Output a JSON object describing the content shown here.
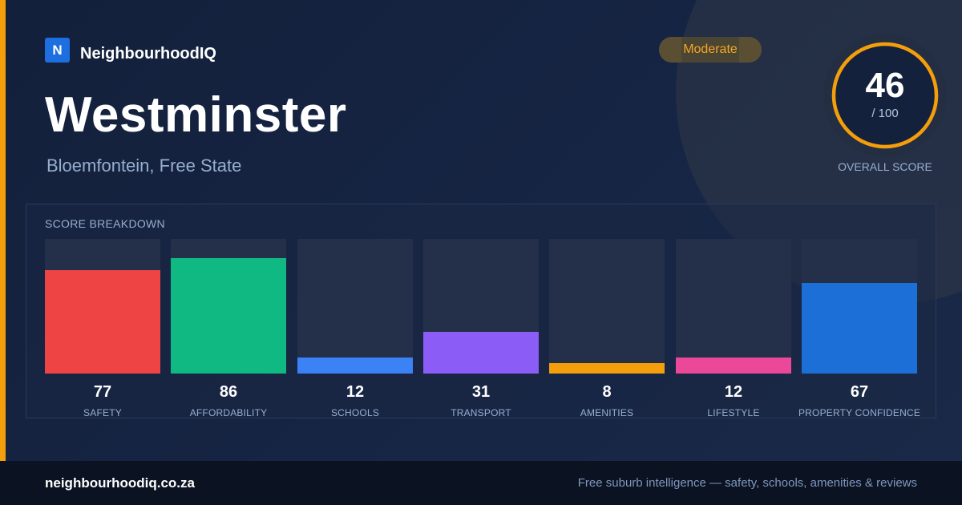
{
  "brand": {
    "logo_letter": "N",
    "name": "NeighbourhoodIQ"
  },
  "title": "Westminster",
  "subtitle": "Bloemfontein, Free State",
  "badge": {
    "label": "Moderate",
    "color": "#f5a524"
  },
  "overall": {
    "score": "46",
    "max": "/ 100",
    "label": "OVERALL SCORE",
    "ring_color": "#f59e0b"
  },
  "breakdown": {
    "title": "SCORE BREAKDOWN"
  },
  "chart_data": {
    "type": "bar",
    "title": "SCORE BREAKDOWN",
    "categories": [
      "SAFETY",
      "AFFORDABILITY",
      "SCHOOLS",
      "TRANSPORT",
      "AMENITIES",
      "LIFESTYLE",
      "PROPERTY CONFIDENCE"
    ],
    "values": [
      77,
      86,
      12,
      31,
      8,
      12,
      67
    ],
    "colors": [
      "#ef4444",
      "#10b981",
      "#3b82f6",
      "#8b5cf6",
      "#f59e0b",
      "#ec4899",
      "#1d6fd8"
    ],
    "ylim": [
      0,
      100
    ]
  },
  "footer": {
    "url": "neighbourhoodiq.co.za",
    "tagline": "Free suburb intelligence — safety, schools, amenities & reviews"
  }
}
